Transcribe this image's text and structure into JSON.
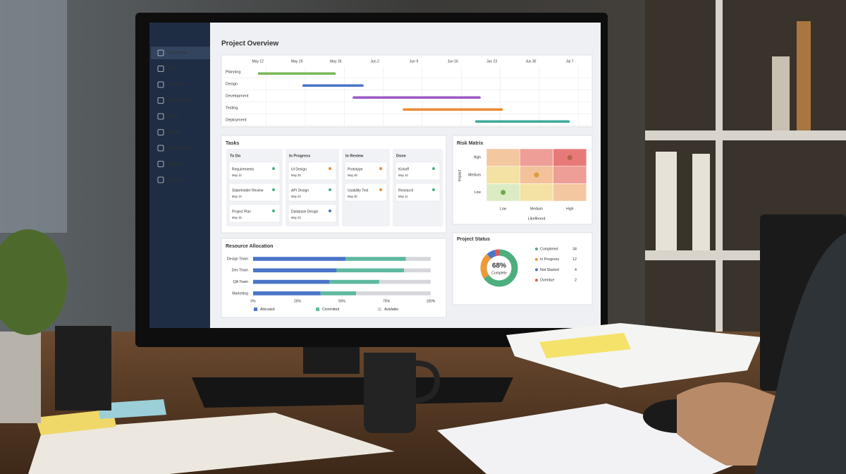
{
  "sidebar": {
    "items": [
      "Overview",
      "Tasks",
      "Timeline",
      "Resources",
      "Risks",
      "Issues",
      "Documents",
      "Reports",
      "Settings"
    ],
    "active": 0
  },
  "title": "Project Overview",
  "timeline": {
    "xlim": [
      -3,
      59
    ],
    "xticks": [
      {
        "value": 0,
        "label": "May 12"
      },
      {
        "value": 7,
        "label": "May 19"
      },
      {
        "value": 14,
        "label": "May 26"
      },
      {
        "value": 21,
        "label": "Jun 2"
      },
      {
        "value": 28,
        "label": "Jun 9"
      },
      {
        "value": 35,
        "label": "Jun 16"
      },
      {
        "value": 42,
        "label": "Jun 23"
      },
      {
        "value": 49,
        "label": "Jun 30"
      },
      {
        "value": 56,
        "label": "Jul 7"
      }
    ],
    "tasks": [
      {
        "name": "Planning",
        "start": 0,
        "end": 14,
        "color": "#7cb65a"
      },
      {
        "name": "Design",
        "start": 8,
        "end": 19,
        "color": "#4a74c9"
      },
      {
        "name": "Development",
        "start": 17,
        "end": 40,
        "color": "#9b59c6"
      },
      {
        "name": "Testing",
        "start": 26,
        "end": 44,
        "color": "#ec8a35"
      },
      {
        "name": "Deployment",
        "start": 39,
        "end": 56,
        "color": "#3fa99a"
      }
    ]
  },
  "tasks": {
    "title": "Tasks",
    "columns": [
      {
        "name": "To Do",
        "cards": [
          {
            "name": "Requirements",
            "date": "May 12",
            "color": "#4caf7d"
          },
          {
            "name": "Stakeholder Review",
            "date": "May 14",
            "color": "#4caf7d"
          },
          {
            "name": "Project Plan",
            "date": "May 15",
            "color": "#4caf7d"
          }
        ]
      },
      {
        "name": "In Progress",
        "cards": [
          {
            "name": "UI Design",
            "date": "May 20",
            "color": "#ec8a35"
          },
          {
            "name": "API Design",
            "date": "May 22",
            "color": "#4caf7d"
          },
          {
            "name": "Database Design",
            "date": "May 23",
            "color": "#4a74c9"
          }
        ]
      },
      {
        "name": "In Review",
        "cards": [
          {
            "name": "Prototype",
            "date": "May 28",
            "color": "#ec8a35"
          },
          {
            "name": "Usability Test",
            "date": "May 30",
            "color": "#ec8a35"
          }
        ]
      },
      {
        "name": "Done",
        "cards": [
          {
            "name": "Kickoff",
            "date": "May 10",
            "color": "#4caf7d"
          },
          {
            "name": "Research",
            "date": "May 11",
            "color": "#4caf7d"
          }
        ]
      }
    ]
  },
  "risk_matrix": {
    "title": "Risk Matrix",
    "xlabel": "Likelihood",
    "ylabel": "Impact",
    "xcategories": [
      "Low",
      "Medium",
      "High"
    ],
    "ycategories": [
      "Low",
      "Medium",
      "High"
    ],
    "cell_colors": [
      [
        "#dcebc4",
        "#f4e2a4",
        "#f3c7a0"
      ],
      [
        "#f4e2a4",
        "#f3c19a",
        "#ee9e96"
      ],
      [
        "#f3c7a0",
        "#ee9e96",
        "#e77a78"
      ]
    ],
    "points": [
      {
        "x": 0,
        "y": 0,
        "color": "#6fa84a"
      },
      {
        "x": 1,
        "y": 1,
        "color": "#e09a3a"
      },
      {
        "x": 2,
        "y": 2,
        "color": "#b5654a"
      }
    ]
  },
  "resources": {
    "title": "Resource Allocation",
    "categories": [
      "Design Team",
      "Dev Team",
      "QA Team",
      "Marketing"
    ],
    "xlim": [
      0,
      100
    ],
    "xticks": [
      {
        "value": 0,
        "label": "0%"
      },
      {
        "value": 25,
        "label": "25%"
      },
      {
        "value": 50,
        "label": "50%"
      },
      {
        "value": 75,
        "label": "75%"
      },
      {
        "value": 100,
        "label": "100%"
      }
    ],
    "series": [
      {
        "name": "Allocated",
        "color": "#4a74c9",
        "values": [
          52,
          47,
          43,
          38
        ]
      },
      {
        "name": "Committed",
        "color": "#5fb8a0",
        "values": [
          34,
          38,
          28,
          20
        ]
      },
      {
        "name": "Available",
        "color": "#d5d7db",
        "values": [
          14,
          15,
          29,
          42
        ]
      }
    ]
  },
  "status": {
    "title": "Project Status",
    "center_label": "68%",
    "center_sub": "Complete",
    "items": [
      {
        "name": "Completed",
        "count": 34,
        "color": "#4caf7d"
      },
      {
        "name": "In Progress",
        "count": 12,
        "color": "#ec9a3a"
      },
      {
        "name": "Not Started",
        "count": 4,
        "color": "#4a74c9"
      },
      {
        "name": "Overdue",
        "count": 2,
        "color": "#e05a4f"
      }
    ]
  }
}
